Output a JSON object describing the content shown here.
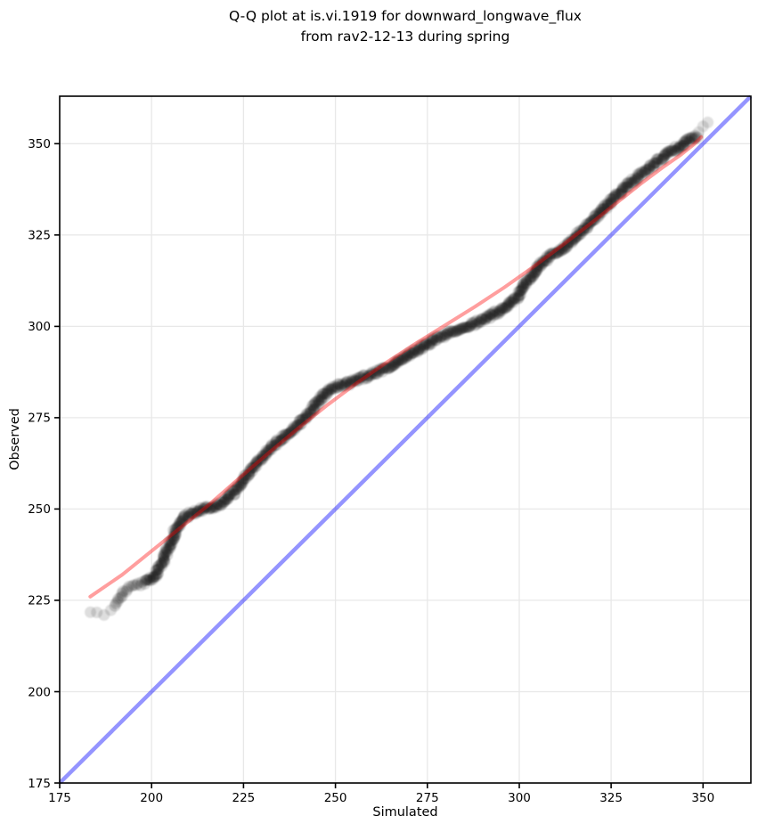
{
  "title": {
    "line1": "Q-Q plot at is.vi.1919 for downward_longwave_flux",
    "line2": "from rav2-12-13 during spring"
  },
  "chart_data": {
    "type": "scatter",
    "title": "Q-Q plot at is.vi.1919 for downward_longwave_flux from rav2-12-13 during spring",
    "xlabel": "Simulated",
    "ylabel": "Observed",
    "xlim": [
      175,
      363
    ],
    "ylim": [
      175,
      363
    ],
    "xticks": [
      175,
      200,
      225,
      250,
      275,
      300,
      325,
      350
    ],
    "yticks": [
      175,
      200,
      225,
      250,
      275,
      300,
      325,
      350
    ],
    "grid": true,
    "grid_color": "#e8e8e8",
    "legend": "none",
    "identity_line": {
      "name": "identity-line-y-equals-x",
      "color": "#0000ff",
      "opacity": 0.42,
      "x": [
        175,
        363
      ],
      "y": [
        175,
        363
      ]
    },
    "fit_line": {
      "name": "qq-fit-line",
      "color": "#ff0000",
      "opacity": 0.38,
      "points": [
        [
          183.3,
          226
        ],
        [
          192,
          232
        ],
        [
          200,
          238.5
        ],
        [
          208,
          245
        ],
        [
          216,
          251.5
        ],
        [
          224,
          258.6
        ],
        [
          232,
          265.5
        ],
        [
          240,
          272.2
        ],
        [
          248,
          278.6
        ],
        [
          256,
          284.6
        ],
        [
          264,
          290.2
        ],
        [
          272,
          295.4
        ],
        [
          280,
          300.4
        ],
        [
          288,
          305.4
        ],
        [
          296,
          310.7
        ],
        [
          304,
          316.4
        ],
        [
          312,
          322.4
        ],
        [
          320,
          328.6
        ],
        [
          327,
          334.2
        ],
        [
          333,
          339
        ],
        [
          339,
          343.5
        ],
        [
          344,
          347
        ],
        [
          347.5,
          349.8
        ],
        [
          349.5,
          351.8
        ]
      ]
    },
    "scatter": {
      "name": "qq-quantile-points",
      "color": "#000000",
      "point_opacity": 0.16,
      "marker_size_px": 13,
      "points": [
        [
          182.5,
          221.2
        ],
        [
          184.2,
          221.2
        ],
        [
          186,
          221.2
        ],
        [
          187.8,
          221.8
        ],
        [
          189.8,
          223.2
        ],
        [
          191,
          225
        ],
        [
          192.3,
          227
        ],
        [
          193.6,
          228.3
        ],
        [
          195,
          228.9
        ],
        [
          196.6,
          229.5
        ],
        [
          198.3,
          230
        ],
        [
          199.8,
          230.8
        ],
        [
          201,
          232
        ],
        [
          202,
          233.5
        ],
        [
          203,
          235.5
        ],
        [
          204,
          238
        ],
        [
          205,
          240.5
        ],
        [
          206,
          243
        ],
        [
          207,
          245.3
        ],
        [
          208,
          246.8
        ],
        [
          209.5,
          248
        ],
        [
          211,
          249
        ],
        [
          213,
          249.8
        ],
        [
          215,
          250.3
        ],
        [
          217,
          250.8
        ],
        [
          219,
          251.5
        ],
        [
          220.5,
          252.5
        ],
        [
          222,
          254
        ],
        [
          223.5,
          256
        ],
        [
          225,
          258
        ],
        [
          226.5,
          260
        ],
        [
          228,
          262
        ],
        [
          230,
          264.3
        ],
        [
          232,
          266.3
        ],
        [
          234,
          268.2
        ],
        [
          236,
          270
        ],
        [
          238,
          271.3
        ],
        [
          240,
          273.3
        ],
        [
          242,
          275.5
        ],
        [
          243.5,
          277.2
        ],
        [
          245,
          279
        ],
        [
          246.5,
          280.8
        ],
        [
          248,
          282.2
        ],
        [
          249.5,
          283.2
        ],
        [
          251,
          283.8
        ],
        [
          253,
          284.3
        ],
        [
          255,
          285
        ],
        [
          257,
          285.8
        ],
        [
          259,
          286.5
        ],
        [
          261,
          287.3
        ],
        [
          263,
          288.2
        ],
        [
          265,
          289.2
        ],
        [
          267,
          290.3
        ],
        [
          269,
          291.6
        ],
        [
          271,
          292.8
        ],
        [
          273,
          294
        ],
        [
          275,
          295.2
        ],
        [
          277,
          296.3
        ],
        [
          279,
          297.3
        ],
        [
          281,
          298.2
        ],
        [
          283,
          299
        ],
        [
          285,
          299.8
        ],
        [
          287,
          300.5
        ],
        [
          289,
          301.3
        ],
        [
          291,
          302.2
        ],
        [
          293,
          303.3
        ],
        [
          295,
          304.5
        ],
        [
          297,
          305.8
        ],
        [
          299,
          307.5
        ],
        [
          300.5,
          309.5
        ],
        [
          302,
          312
        ],
        [
          303.5,
          314.3
        ],
        [
          305,
          316.2
        ],
        [
          307,
          318
        ],
        [
          309,
          319.6
        ],
        [
          311,
          321
        ],
        [
          313,
          322.3
        ],
        [
          315,
          324.3
        ],
        [
          317,
          326.2
        ],
        [
          319,
          328.1
        ],
        [
          321,
          330.1
        ],
        [
          323,
          332.2
        ],
        [
          325,
          334.3
        ],
        [
          327,
          336.3
        ],
        [
          329,
          338.2
        ],
        [
          331,
          340
        ],
        [
          333,
          341.6
        ],
        [
          335,
          343.2
        ],
        [
          337,
          344.8
        ],
        [
          339,
          346.3
        ],
        [
          341,
          347.7
        ],
        [
          343,
          349
        ],
        [
          345,
          350.2
        ],
        [
          346.8,
          351.3
        ],
        [
          348.3,
          352.3
        ],
        [
          349.6,
          353.8
        ],
        [
          350.8,
          355.3
        ],
        [
          351.6,
          356.5
        ]
      ]
    }
  }
}
